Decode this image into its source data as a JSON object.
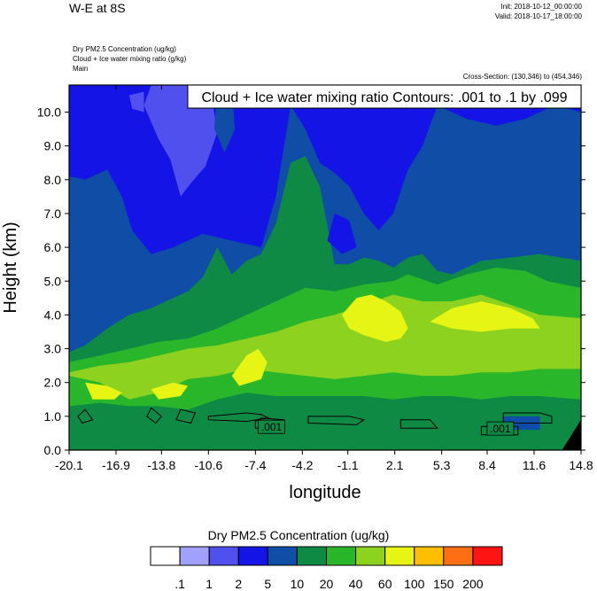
{
  "header": {
    "main_title": "W-E at 8S",
    "init": "Init: 2018-10-12_00:00:00",
    "valid": "Valid: 2018-10-17_18:00:00",
    "field1": "Dry PM2.5 Concentration   (ug/kg)",
    "field2": "Cloud + Ice water mixing ratio   (g/kg)",
    "field3": "Main",
    "cross_section": "Cross-Section: (130,346) to (454,346)"
  },
  "chart_data": {
    "type": "heatmap",
    "title": "Cloud + Ice water mixing ratio Contours: .001 to .1 by .099",
    "xlabel": "longitude",
    "ylabel": "Height (km)",
    "x_ticks": [
      "-20.1",
      "-16.9",
      "-13.8",
      "-10.6",
      "-7.4",
      "-4.2",
      "-1.1",
      "2.1",
      "5.3",
      "8.4",
      "11.6",
      "14.8"
    ],
    "y_ticks": [
      "0.0",
      "1.0",
      "2.0",
      "3.0",
      "4.0",
      "5.0",
      "6.0",
      "7.0",
      "8.0",
      "9.0",
      "10.0"
    ],
    "xlim": [
      -20.1,
      14.8
    ],
    "ylim": [
      0.0,
      10.8
    ],
    "contour_labels": [
      ".001",
      ".001"
    ],
    "colorbar": {
      "title": "Dry PM2.5 Concentration  (ug/kg)",
      "labels": [
        ".1",
        "1",
        "2",
        "5",
        "10",
        "20",
        "40",
        "60",
        "100",
        "150",
        "200"
      ],
      "colors": [
        "#ffffff",
        "#a0a0ff",
        "#5050ee",
        "#1414e6",
        "#0f4da6",
        "#0f8a45",
        "#2ab62a",
        "#8cd21e",
        "#e6f514",
        "#ffbe00",
        "#ff6e14",
        "#ff1414"
      ]
    },
    "levels": [
      {
        "top": [
          [
            -20.1,
            10.8
          ],
          [
            14.8,
            10.8
          ]
        ],
        "color": "#1414e6"
      },
      {
        "top": [
          [
            -20.1,
            8.1
          ],
          [
            -19.0,
            8.0
          ],
          [
            -17.5,
            8.3
          ],
          [
            -16.5,
            7.5
          ],
          [
            -15.8,
            6.5
          ],
          [
            -14.5,
            5.8
          ],
          [
            -13.0,
            6.0
          ],
          [
            -11.0,
            6.4
          ],
          [
            -9.0,
            6.2
          ],
          [
            -7.0,
            6.0
          ],
          [
            -6.0,
            7.5
          ],
          [
            -5.0,
            10.2
          ],
          [
            -4.0,
            9.5
          ],
          [
            -3.0,
            8.5
          ],
          [
            -2.0,
            8.2
          ],
          [
            -1.0,
            7.8
          ],
          [
            0.0,
            7.0
          ],
          [
            1.0,
            6.5
          ],
          [
            2.0,
            7.0
          ],
          [
            3.0,
            8.3
          ],
          [
            4.0,
            9.0
          ],
          [
            5.0,
            10.2
          ],
          [
            7.0,
            9.8
          ],
          [
            9.0,
            9.6
          ],
          [
            11.0,
            9.8
          ],
          [
            13.0,
            10.2
          ],
          [
            14.8,
            10.0
          ]
        ],
        "color": "#0f4da6"
      },
      {
        "top": [
          [
            -20.1,
            2.9
          ],
          [
            -19.0,
            3.1
          ],
          [
            -17.5,
            3.6
          ],
          [
            -16.0,
            4.0
          ],
          [
            -14.5,
            4.2
          ],
          [
            -13.0,
            4.5
          ],
          [
            -12.0,
            4.7
          ],
          [
            -11.0,
            5.1
          ],
          [
            -10.0,
            6.0
          ],
          [
            -9.0,
            5.2
          ],
          [
            -8.0,
            5.6
          ],
          [
            -7.0,
            5.8
          ],
          [
            -6.0,
            6.7
          ],
          [
            -5.0,
            8.5
          ],
          [
            -4.0,
            8.7
          ],
          [
            -3.0,
            7.8
          ],
          [
            -2.0,
            5.5
          ],
          [
            -1.0,
            5.5
          ],
          [
            0.0,
            5.7
          ],
          [
            1.0,
            5.6
          ],
          [
            2.0,
            5.4
          ],
          [
            3.0,
            5.7
          ],
          [
            4.0,
            5.8
          ],
          [
            5.0,
            5.3
          ],
          [
            6.0,
            5.2
          ],
          [
            8.0,
            5.6
          ],
          [
            10.0,
            5.7
          ],
          [
            12.0,
            5.8
          ],
          [
            14.8,
            5.6
          ]
        ],
        "color": "#0f8a45"
      },
      {
        "top": [
          [
            -20.1,
            2.6
          ],
          [
            -18.0,
            2.8
          ],
          [
            -16.0,
            3.0
          ],
          [
            -14.0,
            3.2
          ],
          [
            -12.0,
            3.3
          ],
          [
            -10.0,
            3.6
          ],
          [
            -8.0,
            4.0
          ],
          [
            -6.0,
            4.4
          ],
          [
            -4.0,
            4.8
          ],
          [
            -2.0,
            4.7
          ],
          [
            0.0,
            4.9
          ],
          [
            2.0,
            5.0
          ],
          [
            3.0,
            5.2
          ],
          [
            5.0,
            4.9
          ],
          [
            7.0,
            5.2
          ],
          [
            9.0,
            5.4
          ],
          [
            11.0,
            5.3
          ],
          [
            12.5,
            5.0
          ],
          [
            14.8,
            4.8
          ]
        ],
        "color": "#2ab62a"
      },
      {
        "top": [
          [
            -20.1,
            2.3
          ],
          [
            -18.0,
            2.5
          ],
          [
            -16.0,
            2.6
          ],
          [
            -14.0,
            2.8
          ],
          [
            -12.0,
            3.0
          ],
          [
            -10.0,
            3.1
          ],
          [
            -8.0,
            3.3
          ],
          [
            -6.0,
            3.5
          ],
          [
            -4.0,
            3.8
          ],
          [
            -2.0,
            4.0
          ],
          [
            0.0,
            4.3
          ],
          [
            2.0,
            4.6
          ],
          [
            4.0,
            4.4
          ],
          [
            6.0,
            4.4
          ],
          [
            8.0,
            4.6
          ],
          [
            10.0,
            4.3
          ],
          [
            12.0,
            4.0
          ],
          [
            14.8,
            3.9
          ]
        ],
        "color": "#8cd21e"
      },
      {
        "top": [
          [
            -20.1,
            2.2
          ],
          [
            -18.0,
            2.0
          ],
          [
            -16.0,
            1.5
          ],
          [
            -14.0,
            1.7
          ],
          [
            -12.0,
            2.1
          ],
          [
            -10.0,
            2.2
          ],
          [
            -8.0,
            2.4
          ],
          [
            -6.0,
            2.3
          ],
          [
            -4.0,
            2.2
          ],
          [
            -2.0,
            2.1
          ],
          [
            0.0,
            2.2
          ],
          [
            2.0,
            2.3
          ],
          [
            4.0,
            2.2
          ],
          [
            6.0,
            2.2
          ],
          [
            8.0,
            2.3
          ],
          [
            10.0,
            2.3
          ],
          [
            12.0,
            2.4
          ],
          [
            14.8,
            2.4
          ]
        ],
        "color": "#2ab62a"
      },
      {
        "top": [
          [
            -20.1,
            1.3
          ],
          [
            -18.0,
            1.4
          ],
          [
            -16.0,
            1.3
          ],
          [
            -14.0,
            1.3
          ],
          [
            -12.0,
            1.2
          ],
          [
            -10.0,
            1.5
          ],
          [
            -8.0,
            1.7
          ],
          [
            -6.0,
            1.6
          ],
          [
            -4.0,
            1.6
          ],
          [
            -2.0,
            1.6
          ],
          [
            0.0,
            1.6
          ],
          [
            2.0,
            1.5
          ],
          [
            4.0,
            1.6
          ],
          [
            6.0,
            1.6
          ],
          [
            8.0,
            1.5
          ],
          [
            10.0,
            1.6
          ],
          [
            12.0,
            1.6
          ],
          [
            14.8,
            1.5
          ]
        ],
        "color": "#0f8a45"
      }
    ],
    "patches": [
      {
        "color": "#e6f514",
        "points": [
          [
            -1.5,
            4.0
          ],
          [
            -0.5,
            4.5
          ],
          [
            0.5,
            4.6
          ],
          [
            1.5,
            4.4
          ],
          [
            2.5,
            4.1
          ],
          [
            3.0,
            3.6
          ],
          [
            2.5,
            3.3
          ],
          [
            1.5,
            3.2
          ],
          [
            0.0,
            3.4
          ],
          [
            -1.0,
            3.6
          ]
        ]
      },
      {
        "color": "#e6f514",
        "points": [
          [
            4.5,
            3.8
          ],
          [
            6.0,
            4.2
          ],
          [
            8.0,
            4.4
          ],
          [
            10.0,
            4.2
          ],
          [
            11.5,
            3.9
          ],
          [
            12.0,
            3.6
          ],
          [
            10.0,
            3.6
          ],
          [
            8.0,
            3.5
          ],
          [
            6.0,
            3.6
          ]
        ]
      },
      {
        "color": "#e6f514",
        "points": [
          [
            -19.0,
            2.0
          ],
          [
            -17.5,
            1.9
          ],
          [
            -16.5,
            1.7
          ],
          [
            -17.0,
            1.5
          ],
          [
            -18.5,
            1.5
          ]
        ]
      },
      {
        "color": "#e6f514",
        "points": [
          [
            -14.5,
            1.8
          ],
          [
            -13.0,
            2.0
          ],
          [
            -12.0,
            1.9
          ],
          [
            -12.5,
            1.6
          ],
          [
            -14.0,
            1.5
          ]
        ]
      },
      {
        "color": "#e6f514",
        "points": [
          [
            -9.0,
            2.2
          ],
          [
            -8.0,
            2.8
          ],
          [
            -7.2,
            3.0
          ],
          [
            -6.6,
            2.6
          ],
          [
            -7.0,
            2.1
          ],
          [
            -8.5,
            1.9
          ]
        ]
      },
      {
        "color": "#a0a0ff",
        "points": [
          [
            -14.0,
            10.8
          ],
          [
            -11.0,
            10.8
          ],
          [
            -10.6,
            9.0
          ],
          [
            -11.2,
            8.6
          ],
          [
            -12.0,
            8.8
          ],
          [
            -12.5,
            8.0
          ],
          [
            -13.0,
            9.0
          ],
          [
            -13.6,
            9.5
          ]
        ]
      },
      {
        "color": "#5050ee",
        "points": [
          [
            -14.5,
            10.8
          ],
          [
            -10.5,
            10.8
          ],
          [
            -10.0,
            9.4
          ],
          [
            -10.8,
            8.4
          ],
          [
            -11.8,
            7.9
          ],
          [
            -12.5,
            7.5
          ],
          [
            -13.2,
            8.6
          ],
          [
            -14.0,
            9.2
          ],
          [
            -15.0,
            10.2
          ]
        ]
      },
      {
        "color": "#5050ee",
        "points": [
          [
            -16.0,
            10.5
          ],
          [
            -15.0,
            10.6
          ],
          [
            -15.0,
            10.0
          ],
          [
            -15.8,
            10.1
          ]
        ]
      },
      {
        "color": "#0f4da6",
        "points": [
          [
            -10.0,
            10.8
          ],
          [
            -9.0,
            10.8
          ],
          [
            -8.8,
            9.5
          ],
          [
            -9.5,
            8.8
          ],
          [
            -10.2,
            9.5
          ]
        ]
      },
      {
        "color": "#1414e6",
        "points": [
          [
            -2.0,
            7.0
          ],
          [
            -1.0,
            6.8
          ],
          [
            -0.5,
            6.0
          ],
          [
            -1.5,
            5.8
          ],
          [
            -2.5,
            6.2
          ]
        ]
      },
      {
        "color": "#0f4da6",
        "points": [
          [
            9.5,
            1.0
          ],
          [
            12.0,
            1.0
          ],
          [
            12.0,
            0.6
          ],
          [
            9.5,
            0.6
          ]
        ]
      }
    ],
    "contours": [
      [
        [
          -7.4,
          0.65
        ],
        [
          -6.0,
          0.65
        ],
        [
          -5.5,
          0.9
        ],
        [
          -7.0,
          0.95
        ],
        [
          -7.4,
          0.85
        ]
      ],
      [
        [
          -10.6,
          1.0
        ],
        [
          -8.0,
          1.1
        ],
        [
          -7.0,
          1.05
        ],
        [
          -6.5,
          0.95
        ],
        [
          -8.0,
          0.85
        ],
        [
          -10.6,
          0.9
        ]
      ],
      [
        [
          -3.8,
          1.0
        ],
        [
          -1.0,
          1.0
        ],
        [
          0.0,
          0.9
        ],
        [
          -0.5,
          0.75
        ],
        [
          -3.8,
          0.8
        ]
      ],
      [
        [
          2.5,
          0.9
        ],
        [
          4.5,
          0.9
        ],
        [
          5.0,
          0.65
        ],
        [
          2.5,
          0.65
        ]
      ],
      [
        [
          9.5,
          1.1
        ],
        [
          12.0,
          1.1
        ],
        [
          12.8,
          1.0
        ],
        [
          12.8,
          0.8
        ],
        [
          9.5,
          0.8
        ]
      ],
      [
        [
          8.0,
          0.7
        ],
        [
          10.5,
          0.7
        ],
        [
          10.5,
          0.45
        ],
        [
          8.0,
          0.45
        ]
      ],
      [
        [
          -19.0,
          1.2
        ],
        [
          -18.5,
          0.9
        ],
        [
          -19.2,
          0.8
        ],
        [
          -19.5,
          1.0
        ]
      ],
      [
        [
          -14.5,
          1.25
        ],
        [
          -13.8,
          1.0
        ],
        [
          -14.2,
          0.8
        ],
        [
          -14.8,
          1.0
        ]
      ],
      [
        [
          -12.5,
          1.2
        ],
        [
          -11.5,
          1.1
        ],
        [
          -11.8,
          0.8
        ],
        [
          -12.8,
          0.9
        ]
      ]
    ],
    "contour_label_positions": [
      [
        -6.3,
        0.65
      ],
      [
        9.3,
        0.6
      ]
    ]
  }
}
